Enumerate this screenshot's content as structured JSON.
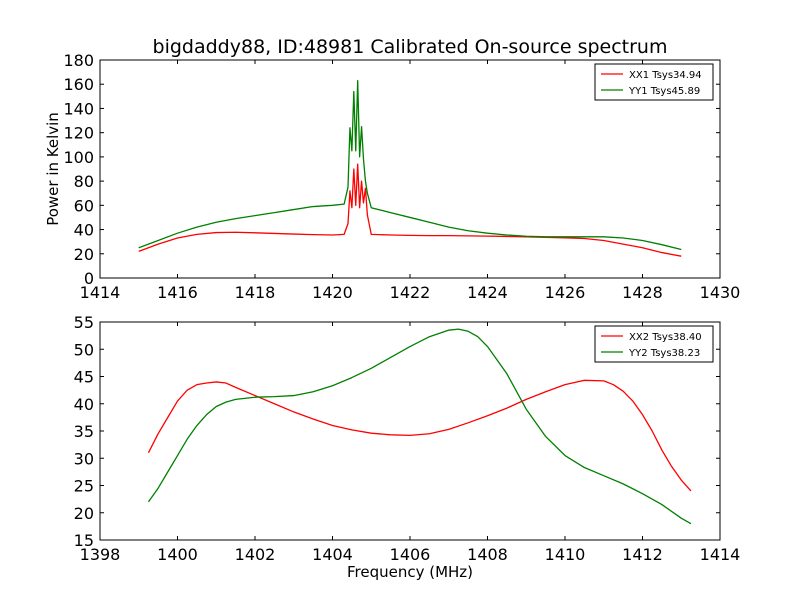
{
  "colors": {
    "xx": "#ff0000",
    "yy": "#008000",
    "axes": "#000000",
    "background": "#ffffff"
  },
  "chart_data": [
    {
      "type": "line",
      "title": "bigdaddy88, ID:48981 Calibrated On-source spectrum",
      "xlabel": "",
      "ylabel": "Power in Kelvin",
      "xlim": [
        1414,
        1430
      ],
      "ylim": [
        0,
        180
      ],
      "xticks": [
        "1414",
        "1416",
        "1418",
        "1420",
        "1422",
        "1424",
        "1426",
        "1428",
        "1430"
      ],
      "yticks": [
        "0",
        "20",
        "40",
        "60",
        "80",
        "100",
        "120",
        "140",
        "160",
        "180"
      ],
      "grid": false,
      "legend_position": "top-right",
      "series": [
        {
          "name": "XX1 Tsys34.94",
          "color": "#ff0000",
          "x": [
            1415.0,
            1415.5,
            1416.0,
            1416.5,
            1417.0,
            1417.5,
            1418.0,
            1418.5,
            1419.0,
            1419.5,
            1420.0,
            1420.3,
            1420.4,
            1420.45,
            1420.5,
            1420.55,
            1420.6,
            1420.65,
            1420.7,
            1420.75,
            1420.8,
            1420.85,
            1420.9,
            1421.0,
            1421.5,
            1422.0,
            1422.5,
            1423.0,
            1423.5,
            1424.0,
            1424.5,
            1425.0,
            1425.5,
            1426.0,
            1426.5,
            1427.0,
            1427.5,
            1428.0,
            1428.5,
            1429.0
          ],
          "y": [
            22,
            28,
            33,
            36,
            37.5,
            37.8,
            37.3,
            36.8,
            36.3,
            35.8,
            35.5,
            36,
            45,
            72,
            58,
            90,
            60,
            94,
            58,
            80,
            62,
            74,
            52,
            36,
            35.5,
            35.2,
            35,
            35,
            34.8,
            34.6,
            34.3,
            34,
            33.6,
            33.2,
            32.6,
            31,
            28,
            25,
            21,
            18
          ]
        },
        {
          "name": "YY1 Tsys45.89",
          "color": "#008000",
          "x": [
            1415.0,
            1415.5,
            1416.0,
            1416.5,
            1417.0,
            1417.5,
            1418.0,
            1418.5,
            1419.0,
            1419.5,
            1420.0,
            1420.3,
            1420.4,
            1420.45,
            1420.5,
            1420.55,
            1420.6,
            1420.65,
            1420.7,
            1420.75,
            1420.8,
            1420.85,
            1420.9,
            1421.0,
            1421.5,
            1422.0,
            1422.5,
            1423.0,
            1423.5,
            1424.0,
            1424.5,
            1425.0,
            1425.5,
            1426.0,
            1426.5,
            1427.0,
            1427.5,
            1428.0,
            1428.5,
            1429.0
          ],
          "y": [
            25,
            31,
            37,
            42,
            46,
            49,
            51.5,
            54,
            56.5,
            59,
            60,
            61,
            75,
            124,
            105,
            154,
            105,
            163,
            100,
            125,
            98,
            80,
            70,
            58,
            54,
            50,
            46,
            42,
            39,
            37,
            35.5,
            34.5,
            34,
            34,
            34,
            34,
            33,
            31,
            27.5,
            23.5
          ]
        }
      ]
    },
    {
      "type": "line",
      "title": "",
      "xlabel": "Frequency (MHz)",
      "ylabel": "",
      "xlim": [
        1398,
        1414
      ],
      "ylim": [
        15,
        55
      ],
      "xticks": [
        "1398",
        "1400",
        "1402",
        "1404",
        "1406",
        "1408",
        "1410",
        "1412",
        "1414"
      ],
      "yticks": [
        "15",
        "20",
        "25",
        "30",
        "35",
        "40",
        "45",
        "50",
        "55"
      ],
      "grid": false,
      "legend_position": "top-right",
      "series": [
        {
          "name": "XX2 Tsys38.40",
          "color": "#ff0000",
          "x": [
            1399.25,
            1399.5,
            1399.75,
            1400.0,
            1400.25,
            1400.5,
            1400.75,
            1401.0,
            1401.25,
            1401.5,
            1402.0,
            1402.5,
            1403.0,
            1403.5,
            1404.0,
            1404.5,
            1405.0,
            1405.5,
            1406.0,
            1406.5,
            1407.0,
            1407.5,
            1408.0,
            1408.5,
            1409.0,
            1409.5,
            1410.0,
            1410.5,
            1411.0,
            1411.25,
            1411.5,
            1411.75,
            1412.0,
            1412.25,
            1412.5,
            1412.75,
            1413.0,
            1413.25
          ],
          "y": [
            31,
            34.5,
            37.5,
            40.5,
            42.5,
            43.5,
            43.8,
            44,
            43.8,
            43,
            41.5,
            40,
            38.5,
            37.2,
            36,
            35.2,
            34.6,
            34.3,
            34.2,
            34.5,
            35.3,
            36.5,
            37.8,
            39.2,
            40.8,
            42.2,
            43.5,
            44.3,
            44.2,
            43.5,
            42.3,
            40.5,
            38,
            35,
            31.5,
            28.5,
            26,
            24
          ]
        },
        {
          "name": "YY2 Tsys38.23",
          "color": "#008000",
          "x": [
            1399.25,
            1399.5,
            1399.75,
            1400.0,
            1400.25,
            1400.5,
            1400.75,
            1401.0,
            1401.25,
            1401.5,
            1402.0,
            1402.5,
            1403.0,
            1403.5,
            1404.0,
            1404.5,
            1405.0,
            1405.5,
            1406.0,
            1406.5,
            1407.0,
            1407.25,
            1407.5,
            1407.75,
            1408.0,
            1408.5,
            1409.0,
            1409.5,
            1410.0,
            1410.5,
            1411.0,
            1411.5,
            1412.0,
            1412.5,
            1413.0,
            1413.25
          ],
          "y": [
            22,
            24.5,
            27.5,
            30.5,
            33.5,
            36,
            38,
            39.5,
            40.3,
            40.8,
            41.2,
            41.3,
            41.5,
            42.2,
            43.3,
            44.8,
            46.5,
            48.5,
            50.5,
            52.3,
            53.5,
            53.7,
            53.3,
            52.3,
            50.5,
            45.5,
            39,
            34,
            30.5,
            28.3,
            26.8,
            25.3,
            23.5,
            21.5,
            19,
            18
          ]
        }
      ]
    }
  ]
}
